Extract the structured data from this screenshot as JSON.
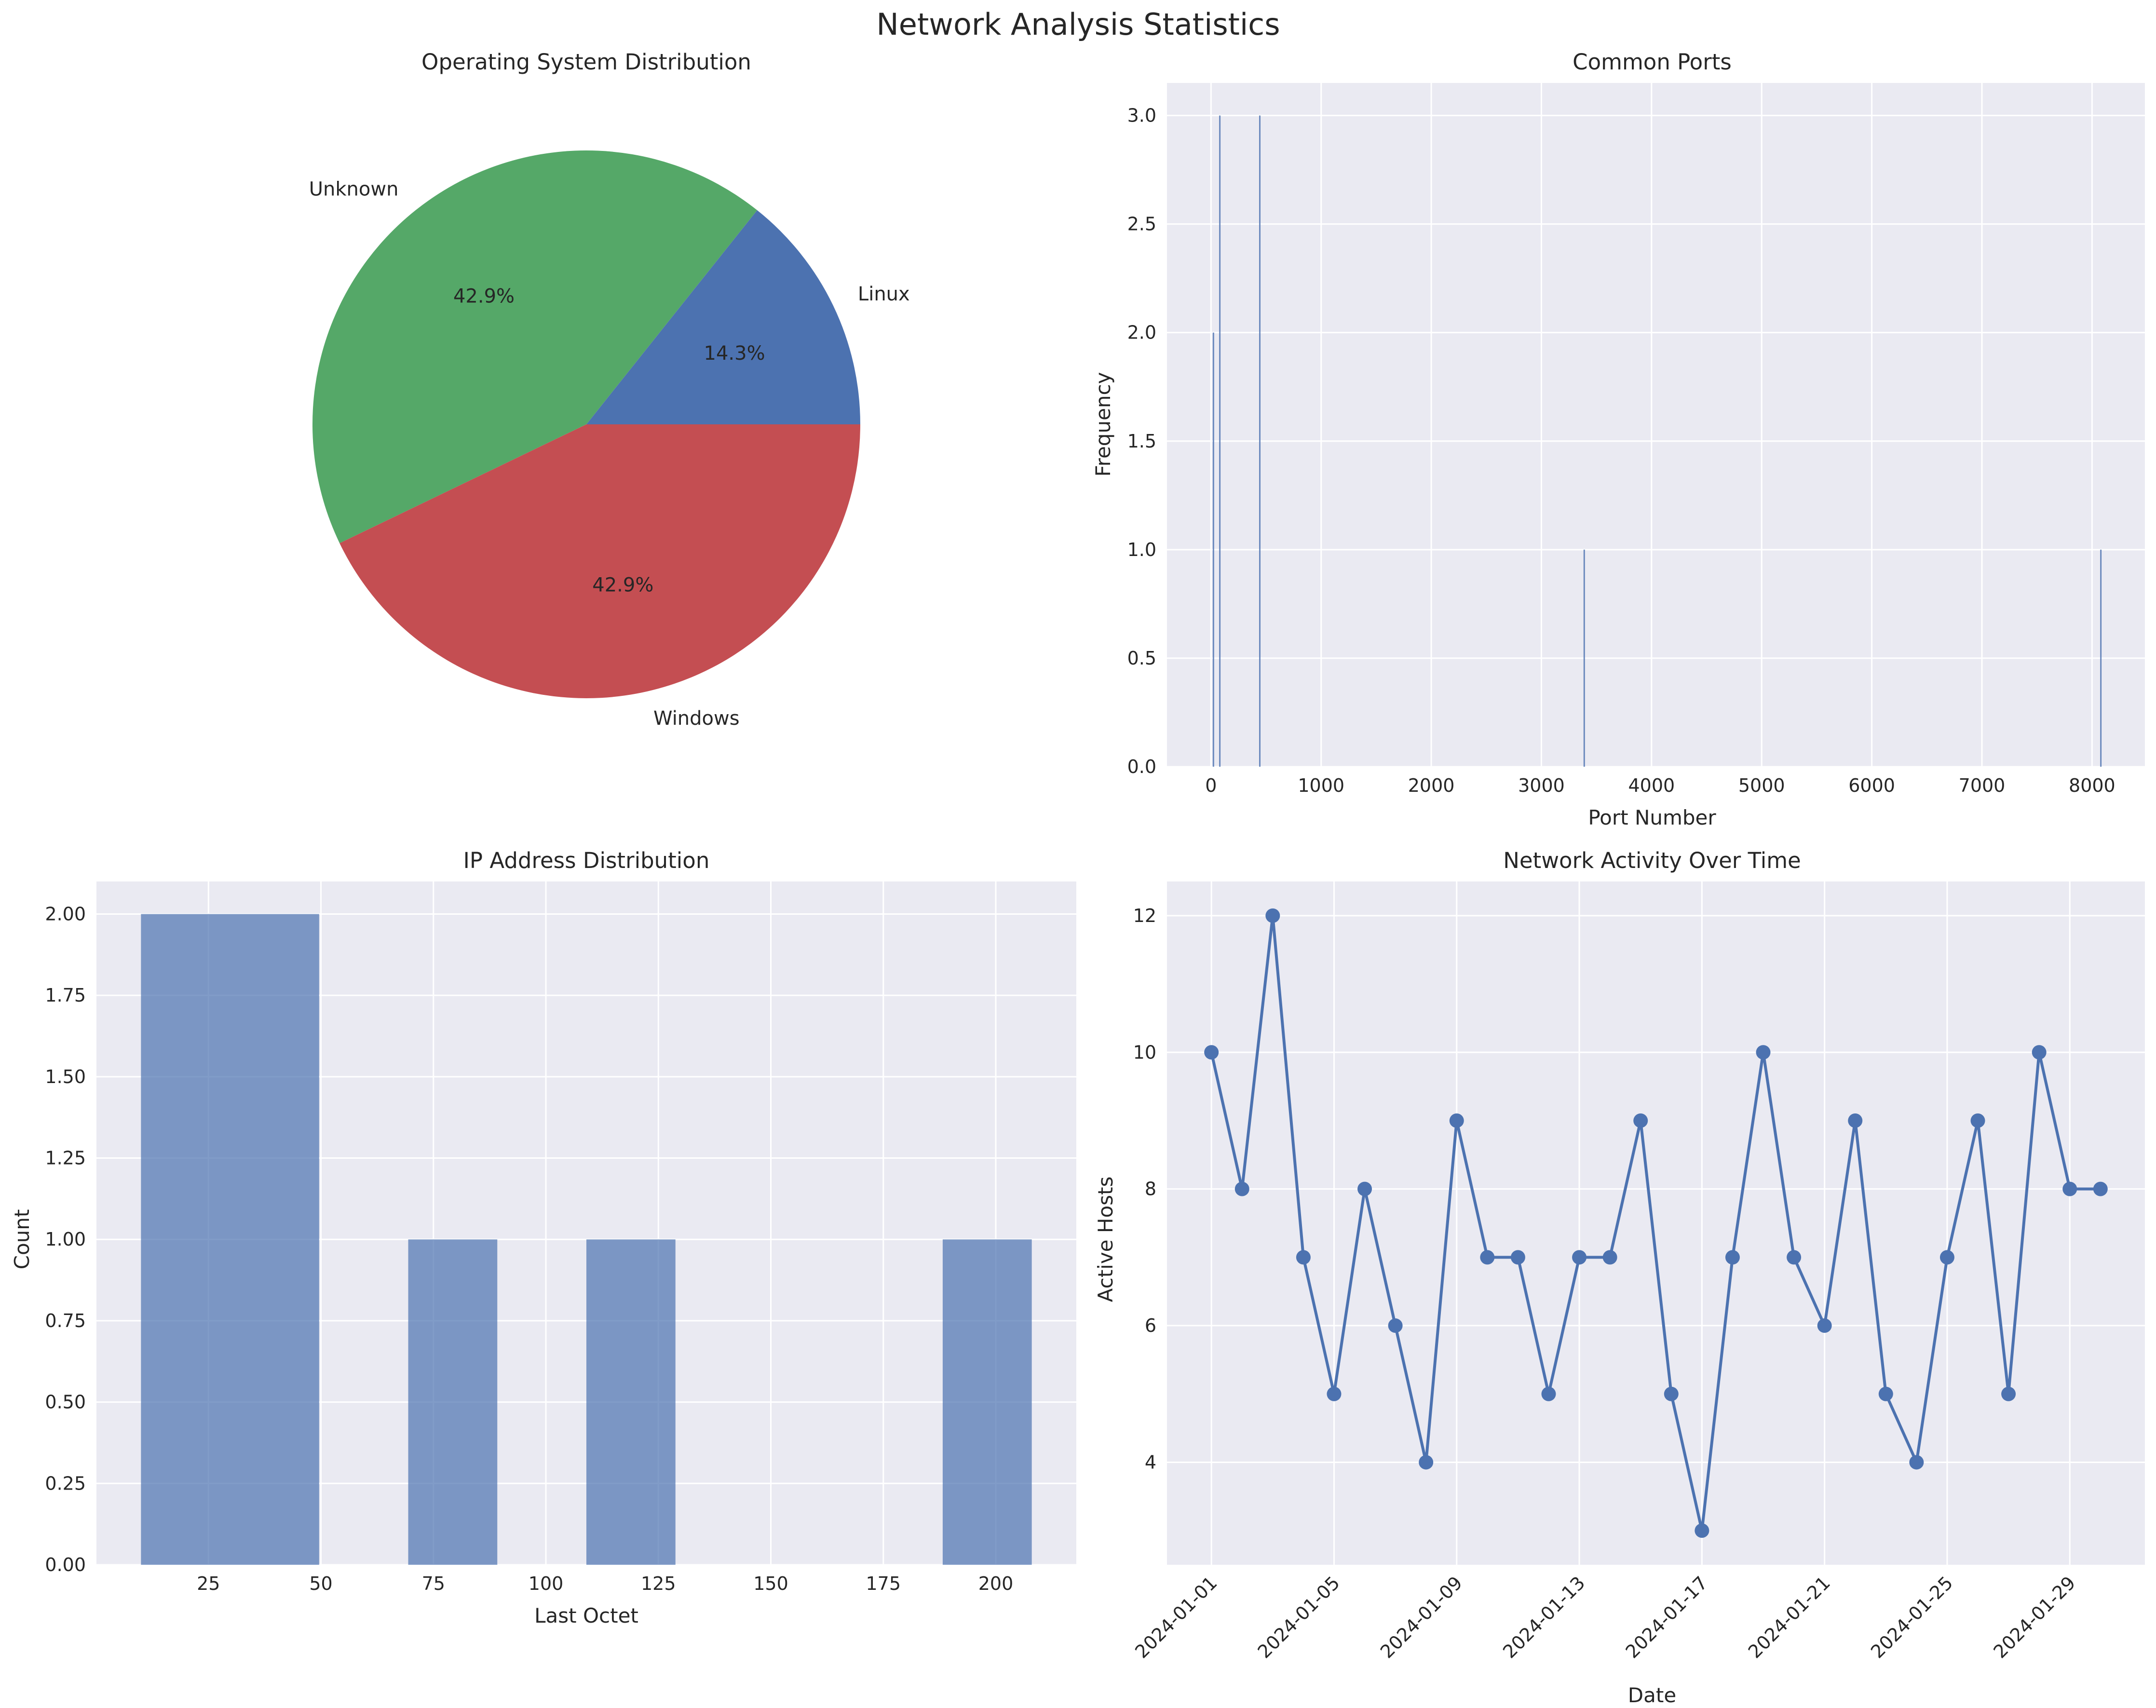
{
  "figure_title": "Network Analysis Statistics",
  "colors": {
    "panel_bg": "#EAEAF2",
    "grid": "#FFFFFF",
    "blue": "#4C72B0",
    "green": "#55A868",
    "red": "#C44E52",
    "bar_fill": "#7B96C3"
  },
  "chart_data": [
    {
      "id": "os",
      "type": "pie",
      "title": "Operating System Distribution",
      "labels": [
        "Linux",
        "Unknown",
        "Windows"
      ],
      "values": [
        1,
        3,
        3
      ],
      "percent_labels": [
        "14.3%",
        "42.9%",
        "42.9%"
      ],
      "colors": [
        "#4C72B0",
        "#55A868",
        "#C44E52"
      ]
    },
    {
      "id": "ports",
      "type": "bar",
      "title": "Common Ports",
      "xlabel": "Port Number",
      "ylabel": "Frequency",
      "xlim": [
        -400,
        8480
      ],
      "ylim": [
        0,
        3.15
      ],
      "xticks": [
        0,
        1000,
        2000,
        3000,
        4000,
        5000,
        6000,
        7000,
        8000
      ],
      "yticks": [
        0.0,
        0.5,
        1.0,
        1.5,
        2.0,
        2.5,
        3.0
      ],
      "ytick_labels": [
        "0.0",
        "0.5",
        "1.0",
        "1.5",
        "2.0",
        "2.5",
        "3.0"
      ],
      "bars": [
        {
          "x": 22,
          "value": 2
        },
        {
          "x": 80,
          "value": 3
        },
        {
          "x": 443,
          "value": 3
        },
        {
          "x": 3389,
          "value": 1
        },
        {
          "x": 8080,
          "value": 1
        }
      ]
    },
    {
      "id": "ip",
      "type": "bar",
      "title": "IP Address Distribution",
      "xlabel": "Last Octet",
      "ylabel": "Count",
      "xlim": [
        0.1,
        217.9
      ],
      "ylim": [
        0,
        2.1
      ],
      "xticks": [
        25,
        50,
        75,
        100,
        125,
        150,
        175,
        200
      ],
      "yticks": [
        0,
        0.25,
        0.5,
        0.75,
        1.0,
        1.25,
        1.5,
        1.75,
        2.0
      ],
      "ytick_labels": [
        "0.00",
        "0.25",
        "0.50",
        "0.75",
        "1.00",
        "1.25",
        "1.50",
        "1.75",
        "2.00"
      ],
      "bins": [
        {
          "start": 10,
          "end": 49.6,
          "value": 2
        },
        {
          "start": 69.4,
          "end": 89.2,
          "value": 1
        },
        {
          "start": 109,
          "end": 128.8,
          "value": 1
        },
        {
          "start": 188.2,
          "end": 208,
          "value": 1
        }
      ]
    },
    {
      "id": "activity",
      "type": "line",
      "title": "Network Activity Over Time",
      "xlabel": "Date",
      "ylabel": "Active Hosts",
      "ylim": [
        2.5,
        12.5
      ],
      "yticks": [
        4,
        6,
        8,
        10,
        12
      ],
      "x": [
        "2024-01-01",
        "2024-01-02",
        "2024-01-03",
        "2024-01-04",
        "2024-01-05",
        "2024-01-06",
        "2024-01-07",
        "2024-01-08",
        "2024-01-09",
        "2024-01-10",
        "2024-01-11",
        "2024-01-12",
        "2024-01-13",
        "2024-01-14",
        "2024-01-15",
        "2024-01-16",
        "2024-01-17",
        "2024-01-18",
        "2024-01-19",
        "2024-01-20",
        "2024-01-21",
        "2024-01-22",
        "2024-01-23",
        "2024-01-24",
        "2024-01-25",
        "2024-01-26",
        "2024-01-27",
        "2024-01-28",
        "2024-01-29",
        "2024-01-30"
      ],
      "y": [
        10,
        8,
        12,
        7,
        5,
        8,
        6,
        4,
        9,
        7,
        7,
        5,
        7,
        7,
        9,
        5,
        3,
        7,
        10,
        7,
        6,
        9,
        5,
        4,
        7,
        9,
        5,
        10,
        8,
        8
      ],
      "xtick_labels": [
        "2024-01-01",
        "2024-01-05",
        "2024-01-09",
        "2024-01-13",
        "2024-01-17",
        "2024-01-21",
        "2024-01-25",
        "2024-01-29"
      ]
    }
  ]
}
